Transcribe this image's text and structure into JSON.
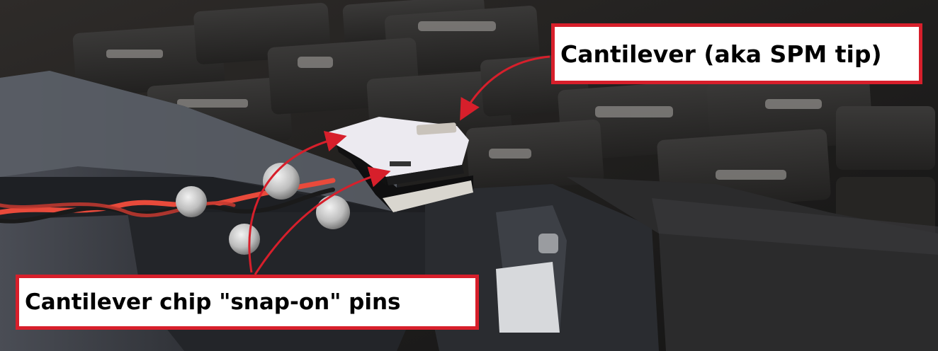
{
  "labels": {
    "cantilever": "Cantilever (aka SPM tip)",
    "pins": "Cantilever chip \"snap-on\" pins"
  },
  "colors": {
    "annotation_red": "#d71f2b",
    "label_bg": "#ffffff"
  }
}
